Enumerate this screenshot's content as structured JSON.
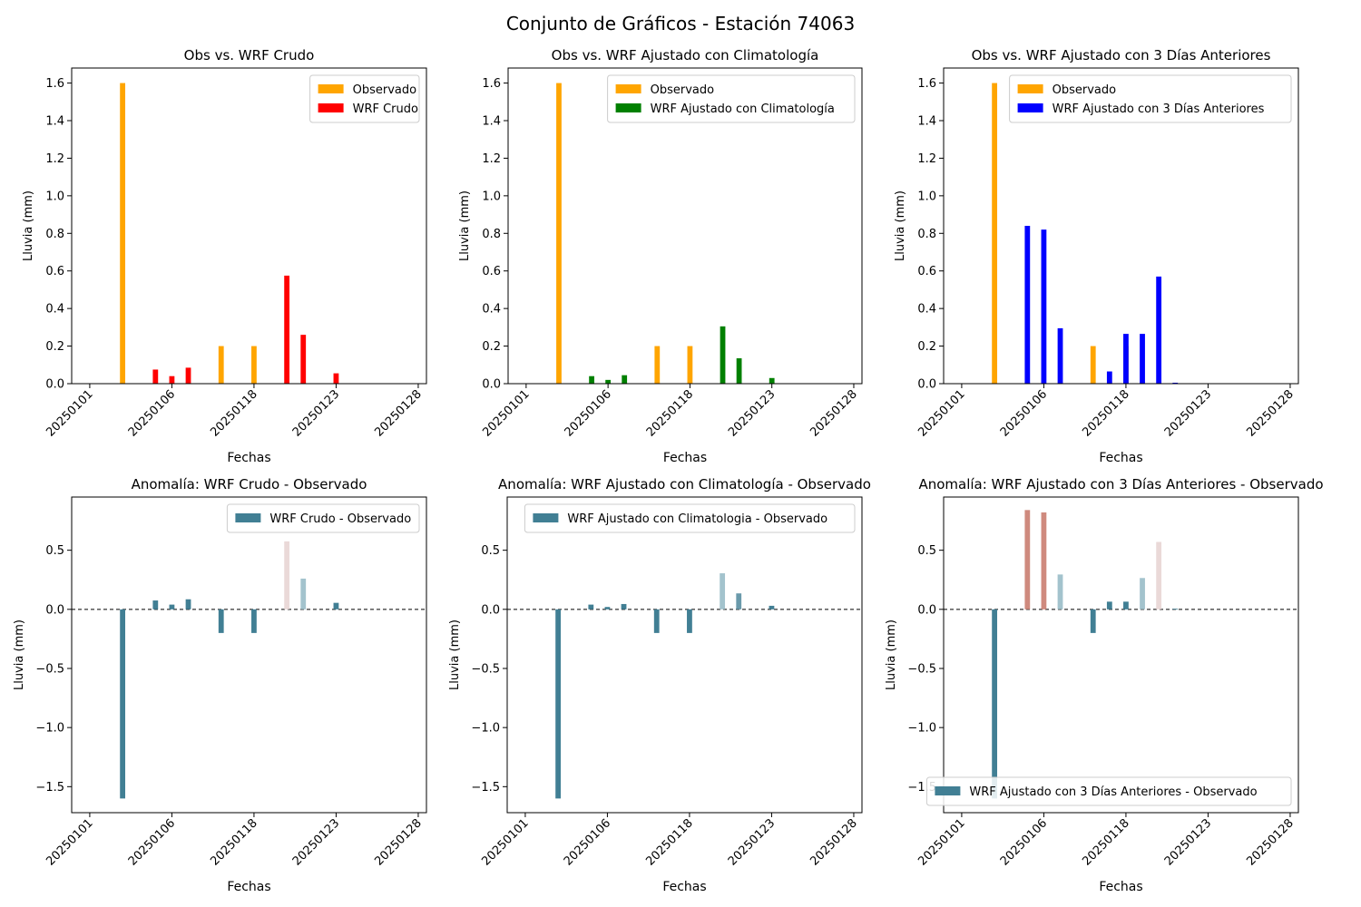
{
  "figure": {
    "title": "Conjunto de Gráficos - Estación 74063"
  },
  "chart_data": [
    {
      "type": "bar",
      "title": "Obs vs. WRF Crudo",
      "xlabel": "Fechas",
      "ylabel": "Lluvia (mm)",
      "xticks": [
        "20250101",
        "20250106",
        "20250118",
        "20250123",
        "20250128"
      ],
      "yticks": [
        "0.0",
        "0.2",
        "0.4",
        "0.6",
        "0.8",
        "1.0",
        "1.2",
        "1.4",
        "1.6"
      ],
      "ylim": [
        0,
        1.68
      ],
      "grid": false,
      "legend": "top-right",
      "series": [
        {
          "name": "Observado",
          "color": "#ffa500",
          "points": [
            [
              2,
              1.6
            ],
            [
              8,
              0.2
            ],
            [
              10,
              0.2
            ]
          ]
        },
        {
          "name": "WRF Crudo",
          "color": "#ff0000",
          "points": [
            [
              4,
              0.075
            ],
            [
              5,
              0.04
            ],
            [
              6,
              0.085
            ],
            [
              12,
              0.575
            ],
            [
              13,
              0.26
            ],
            [
              15,
              0.055
            ]
          ]
        }
      ]
    },
    {
      "type": "bar",
      "title": "Obs vs. WRF Ajustado con Climatología",
      "xlabel": "Fechas",
      "ylabel": "Lluvia (mm)",
      "xticks": [
        "20250101",
        "20250106",
        "20250118",
        "20250123",
        "20250128"
      ],
      "yticks": [
        "0.0",
        "0.2",
        "0.4",
        "0.6",
        "0.8",
        "1.0",
        "1.2",
        "1.4",
        "1.6"
      ],
      "ylim": [
        0,
        1.68
      ],
      "grid": false,
      "legend": "top-right",
      "series": [
        {
          "name": "Observado",
          "color": "#ffa500",
          "points": [
            [
              2,
              1.6
            ],
            [
              8,
              0.2
            ],
            [
              10,
              0.2
            ]
          ]
        },
        {
          "name": "WRF Ajustado con Climatología",
          "color": "#008000",
          "points": [
            [
              4,
              0.04
            ],
            [
              5,
              0.02
            ],
            [
              6,
              0.045
            ],
            [
              12,
              0.305
            ],
            [
              13,
              0.135
            ],
            [
              15,
              0.03
            ]
          ]
        }
      ]
    },
    {
      "type": "bar",
      "title": "Obs vs. WRF Ajustado con 3 Días Anteriores",
      "xlabel": "Fechas",
      "ylabel": "Lluvia (mm)",
      "xticks": [
        "20250101",
        "20250106",
        "20250118",
        "20250123",
        "20250128"
      ],
      "yticks": [
        "0.0",
        "0.2",
        "0.4",
        "0.6",
        "0.8",
        "1.0",
        "1.2",
        "1.4",
        "1.6"
      ],
      "ylim": [
        0,
        1.68
      ],
      "grid": false,
      "legend": "top-right",
      "series": [
        {
          "name": "Observado",
          "color": "#ffa500",
          "points": [
            [
              2,
              1.6
            ],
            [
              8,
              0.2
            ],
            [
              10,
              0.2
            ]
          ]
        },
        {
          "name": "WRF Ajustado con 3 Días Anteriores",
          "color": "#0000ff",
          "points": [
            [
              4,
              0.84
            ],
            [
              5,
              0.82
            ],
            [
              6,
              0.295
            ],
            [
              9,
              0.065
            ],
            [
              10,
              0.265
            ],
            [
              11,
              0.265
            ],
            [
              12,
              0.57
            ],
            [
              13,
              0.005
            ]
          ]
        }
      ]
    },
    {
      "type": "bar",
      "title": "Anomalía: WRF Crudo - Observado",
      "xlabel": "Fechas",
      "ylabel": "Lluvia (mm)",
      "xticks": [
        "20250101",
        "20250106",
        "20250118",
        "20250123",
        "20250128"
      ],
      "yticks": [
        "−1.5",
        "−1.0",
        "−0.5",
        "0.0",
        "0.5"
      ],
      "ylim": [
        -1.72,
        0.95
      ],
      "grid": false,
      "legend": "top-right",
      "zero_line": true,
      "series": [
        {
          "name": "WRF Crudo - Observado",
          "color": "#417f94",
          "points": [
            [
              2,
              -1.6,
              "#417f94"
            ],
            [
              4,
              0.075,
              "#417f94"
            ],
            [
              5,
              0.04,
              "#417f94"
            ],
            [
              6,
              0.085,
              "#417f94"
            ],
            [
              8,
              -0.2,
              "#417f94"
            ],
            [
              10,
              -0.2,
              "#417f94"
            ],
            [
              12,
              0.575,
              "#ead9d8"
            ],
            [
              13,
              0.26,
              "#a3c3cd"
            ],
            [
              15,
              0.055,
              "#417f94"
            ]
          ]
        }
      ]
    },
    {
      "type": "bar",
      "title": "Anomalía: WRF Ajustado con Climatología - Observado",
      "xlabel": "Fechas",
      "ylabel": "Lluvia (mm)",
      "xticks": [
        "20250101",
        "20250106",
        "20250118",
        "20250123",
        "20250128"
      ],
      "yticks": [
        "−1.5",
        "−1.0",
        "−0.5",
        "0.0",
        "0.5"
      ],
      "ylim": [
        -1.72,
        0.95
      ],
      "grid": false,
      "legend": "top-right",
      "zero_line": true,
      "series": [
        {
          "name": "WRF Ajustado con Climatologia - Observado",
          "color": "#417f94",
          "points": [
            [
              2,
              -1.6,
              "#417f94"
            ],
            [
              4,
              0.04,
              "#417f94"
            ],
            [
              5,
              0.02,
              "#417f94"
            ],
            [
              6,
              0.045,
              "#417f94"
            ],
            [
              8,
              -0.2,
              "#417f94"
            ],
            [
              10,
              -0.2,
              "#417f94"
            ],
            [
              12,
              0.305,
              "#a3c3cd"
            ],
            [
              13,
              0.135,
              "#6a9aab"
            ],
            [
              15,
              0.03,
              "#417f94"
            ]
          ]
        }
      ]
    },
    {
      "type": "bar",
      "title": "Anomalía: WRF Ajustado con 3 Días Anteriores - Observado",
      "xlabel": "Fechas",
      "ylabel": "Lluvia (mm)",
      "xticks": [
        "20250101",
        "20250106",
        "20250118",
        "20250123",
        "20250128"
      ],
      "yticks": [
        "−1.5",
        "−1.0",
        "−0.5",
        "0.0",
        "0.5"
      ],
      "ylim": [
        -1.72,
        0.95
      ],
      "grid": false,
      "legend": "bottom-right",
      "zero_line": true,
      "series": [
        {
          "name": "WRF Ajustado con 3 Días Anteriores - Observado",
          "color": "#417f94",
          "points": [
            [
              2,
              -1.6,
              "#417f94"
            ],
            [
              4,
              0.84,
              "#cf8a7e"
            ],
            [
              5,
              0.82,
              "#cf8a7e"
            ],
            [
              6,
              0.295,
              "#a3c3cd"
            ],
            [
              8,
              -0.2,
              "#417f94"
            ],
            [
              9,
              0.065,
              "#417f94"
            ],
            [
              10,
              0.065,
              "#417f94"
            ],
            [
              11,
              0.265,
              "#a3c3cd"
            ],
            [
              12,
              0.57,
              "#ead9d8"
            ],
            [
              13,
              0.005,
              "#417f94"
            ]
          ]
        }
      ]
    }
  ]
}
